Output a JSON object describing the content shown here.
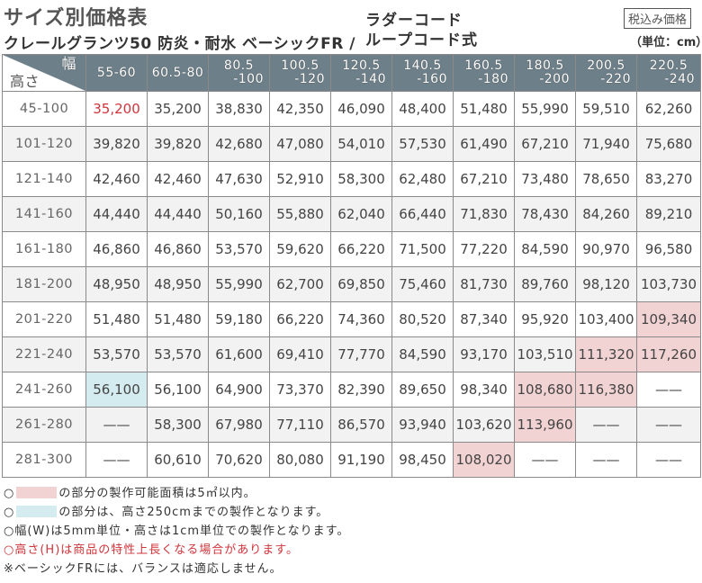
{
  "header": {
    "title": "サイズ別価格表",
    "subtitle": "クレールグランツ50 防炎・耐水 ベーシックFR /",
    "subtitle_line1": "ラダーコード",
    "subtitle_line2": "ループコード式",
    "tax_badge": "税込み価格",
    "unit": "（単位：cm）"
  },
  "table": {
    "corner_width_label": "幅",
    "corner_height_label": "高さ",
    "columns": [
      {
        "l1": "55-60",
        "l2": ""
      },
      {
        "l1": "60.5-80",
        "l2": ""
      },
      {
        "l1": "80.5",
        "l2": "-100"
      },
      {
        "l1": "100.5",
        "l2": "-120"
      },
      {
        "l1": "120.5",
        "l2": "-140"
      },
      {
        "l1": "140.5",
        "l2": "-160"
      },
      {
        "l1": "160.5",
        "l2": "-180"
      },
      {
        "l1": "180.5",
        "l2": "-200"
      },
      {
        "l1": "200.5",
        "l2": "-220"
      },
      {
        "l1": "220.5",
        "l2": "-240"
      }
    ],
    "rows": [
      {
        "height": "45-100",
        "cells": [
          "35,200",
          "35,200",
          "38,830",
          "42,350",
          "46,090",
          "48,400",
          "51,480",
          "55,990",
          "59,510",
          "62,260"
        ]
      },
      {
        "height": "101-120",
        "cells": [
          "39,820",
          "39,820",
          "42,680",
          "47,080",
          "54,010",
          "57,530",
          "61,490",
          "67,210",
          "71,940",
          "75,680"
        ]
      },
      {
        "height": "121-140",
        "cells": [
          "42,460",
          "42,460",
          "47,630",
          "52,910",
          "58,300",
          "62,480",
          "67,210",
          "73,480",
          "78,650",
          "83,270"
        ]
      },
      {
        "height": "141-160",
        "cells": [
          "44,440",
          "44,440",
          "50,160",
          "55,880",
          "62,040",
          "66,440",
          "71,830",
          "78,430",
          "84,260",
          "89,210"
        ]
      },
      {
        "height": "161-180",
        "cells": [
          "46,860",
          "46,860",
          "53,570",
          "59,620",
          "66,220",
          "71,500",
          "77,220",
          "84,590",
          "90,970",
          "96,580"
        ]
      },
      {
        "height": "181-200",
        "cells": [
          "48,950",
          "48,950",
          "55,990",
          "62,700",
          "69,850",
          "75,460",
          "81,730",
          "89,760",
          "98,120",
          "103,730"
        ]
      },
      {
        "height": "201-220",
        "cells": [
          "51,480",
          "51,480",
          "59,180",
          "66,220",
          "74,360",
          "80,520",
          "87,340",
          "95,920",
          "103,400",
          "109,340"
        ]
      },
      {
        "height": "221-240",
        "cells": [
          "53,570",
          "53,570",
          "61,600",
          "69,410",
          "77,770",
          "84,590",
          "93,170",
          "103,510",
          "111,320",
          "117,260"
        ]
      },
      {
        "height": "241-260",
        "cells": [
          "56,100",
          "56,100",
          "64,900",
          "73,370",
          "82,390",
          "89,650",
          "98,340",
          "108,680",
          "116,380",
          "——"
        ]
      },
      {
        "height": "261-280",
        "cells": [
          "——",
          "58,300",
          "67,980",
          "77,110",
          "86,570",
          "93,940",
          "103,620",
          "113,960",
          "——",
          "——"
        ]
      },
      {
        "height": "281-300",
        "cells": [
          "——",
          "60,610",
          "70,620",
          "80,080",
          "91,190",
          "98,450",
          "108,020",
          "——",
          "——",
          "——"
        ]
      }
    ]
  },
  "colors": {
    "header_bg": "#6d7f89",
    "pink_highlight": "#f2d3d3",
    "blue_highlight": "#d4ecf0",
    "red_text": "#d0343a"
  },
  "notes": [
    {
      "prefix": "○",
      "text": "の部分の製作可能面積は5㎡以内。"
    },
    {
      "prefix": "○",
      "text": "の部分は、高さ250cmまでの製作となります。"
    },
    {
      "text": "○幅(W)は5mm単位・高さは1cm単位での製作となります。"
    },
    {
      "text": "○高さ(H)は商品の特性上長くなる場合があります。"
    },
    {
      "text": "※ベーシックFRには、バランスは適応しません。"
    }
  ]
}
